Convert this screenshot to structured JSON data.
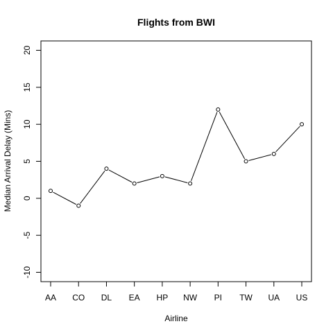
{
  "chart_data": {
    "type": "line",
    "title": "Flights from BWI",
    "xlabel": "Airline",
    "ylabel": "Median Arrival Delay (Mins)",
    "categories": [
      "AA",
      "CO",
      "DL",
      "EA",
      "HP",
      "NW",
      "PI",
      "TW",
      "UA",
      "US"
    ],
    "values": [
      1,
      -1,
      4,
      2,
      3,
      2,
      12,
      5,
      6,
      10
    ],
    "ylim": [
      -11,
      21
    ],
    "yticks": [
      -10,
      -5,
      0,
      5,
      10,
      15,
      20
    ],
    "grid": false,
    "markers": "open-circle"
  }
}
